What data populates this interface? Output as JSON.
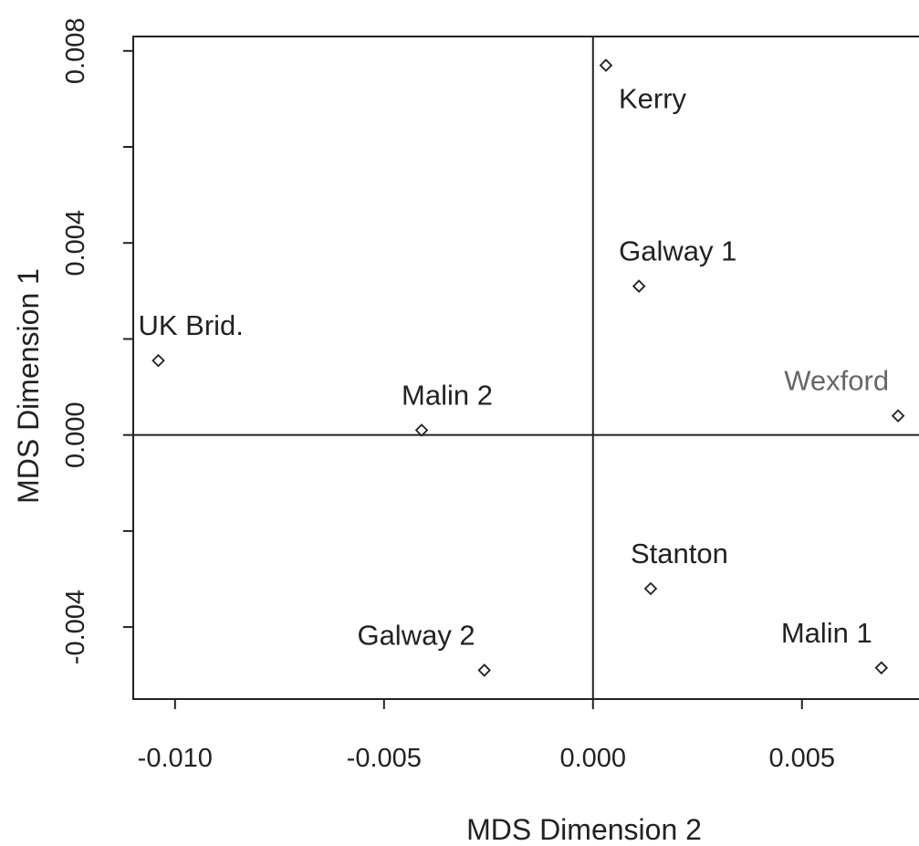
{
  "chart_data": {
    "type": "scatter",
    "title": "",
    "xlabel": "MDS Dimension 2",
    "ylabel": "MDS Dimension 1",
    "xlim": [
      -0.011,
      0.0078
    ],
    "ylim": [
      -0.0055,
      0.0083
    ],
    "xticks": [
      {
        "value": -0.01,
        "label": "-0.010"
      },
      {
        "value": -0.005,
        "label": "-0.005"
      },
      {
        "value": 0.0,
        "label": "0.000"
      },
      {
        "value": 0.005,
        "label": "0.005"
      }
    ],
    "yticks": [
      {
        "value": -0.004,
        "label": "-0.004"
      },
      {
        "value": -0.002,
        "label": ""
      },
      {
        "value": 0.0,
        "label": "0.000"
      },
      {
        "value": 0.002,
        "label": ""
      },
      {
        "value": 0.004,
        "label": "0.004"
      },
      {
        "value": 0.006,
        "label": ""
      },
      {
        "value": 0.008,
        "label": "0.008"
      }
    ],
    "reference_lines": {
      "x": 0,
      "y": 0
    },
    "marker": "open-diamond",
    "grid": false,
    "points": [
      {
        "label": "Kerry",
        "x": 0.00031,
        "y": 0.0077,
        "label_pos": "below-right",
        "color": "#222222"
      },
      {
        "label": "Galway 1",
        "x": 0.0011,
        "y": 0.0031,
        "label_pos": "above",
        "color": "#222222"
      },
      {
        "label": "UK Brid.",
        "x": -0.0104,
        "y": 0.00155,
        "label_pos": "above",
        "color": "#222222"
      },
      {
        "label": "Wexford",
        "x": 0.0073,
        "y": 0.0004,
        "label_pos": "above-left",
        "color": "#666666"
      },
      {
        "label": "Malin 2",
        "x": -0.0041,
        "y": 0.0001,
        "label_pos": "above",
        "color": "#222222"
      },
      {
        "label": "Stanton",
        "x": 0.00138,
        "y": -0.0032,
        "label_pos": "above",
        "color": "#222222"
      },
      {
        "label": "Galway 2",
        "x": -0.0026,
        "y": -0.0049,
        "label_pos": "above-left",
        "color": "#222222"
      },
      {
        "label": "Malin 1",
        "x": 0.0069,
        "y": -0.00485,
        "label_pos": "above-left",
        "color": "#222222"
      }
    ]
  }
}
